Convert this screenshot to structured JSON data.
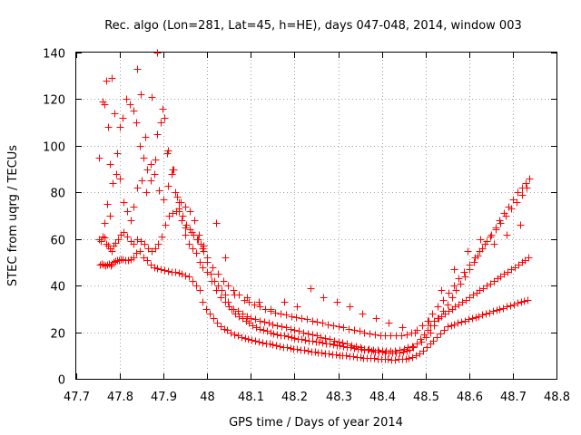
{
  "chart_data": {
    "type": "scatter",
    "title": "Rec. algo (Lon=281, Lat=45, h=HE), days 047-048, 2014, window 003",
    "xlabel": "GPS time / Days of year 2014",
    "ylabel": "STEC from uqrg / TECUs",
    "xlim": [
      47.7,
      48.8
    ],
    "ylim": [
      0,
      140
    ],
    "xticks": [
      "47.7",
      "47.8",
      "47.9",
      "48",
      "48.1",
      "48.2",
      "48.3",
      "48.4",
      "48.5",
      "48.6",
      "48.7",
      "48.8"
    ],
    "yticks": [
      "0",
      "20",
      "40",
      "60",
      "80",
      "100",
      "120",
      "140"
    ],
    "grid": true,
    "marker": "+",
    "color": "#ff0000",
    "series": [
      {
        "x": [
          47.754,
          47.758,
          47.762,
          47.766,
          47.77,
          47.774,
          47.778,
          47.782,
          47.786,
          47.79,
          47.794,
          47.798,
          47.802,
          47.806,
          47.812,
          47.818,
          47.824,
          47.83,
          47.838,
          47.846,
          47.854,
          47.862,
          47.87,
          47.878,
          47.886,
          47.894,
          47.902,
          47.91,
          47.918,
          47.926,
          47.934,
          47.942,
          47.95,
          47.958,
          47.966,
          47.974,
          47.982,
          47.99,
          47.998,
          48.006,
          48.014,
          48.022,
          48.03,
          48.038,
          48.046,
          48.054,
          48.062,
          48.07,
          48.078,
          48.086,
          48.094,
          48.102,
          48.11,
          48.118,
          48.126,
          48.134,
          48.142,
          48.15,
          48.158,
          48.166,
          48.174,
          48.182,
          48.19,
          48.198,
          48.206,
          48.214,
          48.222,
          48.23,
          48.238,
          48.246,
          48.254,
          48.262,
          48.27,
          48.278,
          48.286,
          48.294,
          48.302,
          48.31,
          48.318,
          48.326,
          48.334,
          48.342,
          48.35,
          48.358,
          48.366,
          48.374,
          48.382,
          48.39,
          48.398,
          48.406,
          48.414,
          48.422,
          48.43,
          48.438,
          48.446,
          48.454,
          48.462,
          48.47,
          48.478,
          48.486,
          48.494,
          48.502,
          48.51,
          48.518,
          48.526,
          48.534,
          48.542,
          48.55,
          48.558,
          48.566,
          48.574,
          48.582,
          48.59,
          48.598,
          48.606,
          48.614,
          48.622,
          48.63,
          48.638,
          48.646,
          48.654,
          48.662,
          48.67,
          48.678,
          48.686,
          48.694,
          48.702,
          48.71,
          48.718,
          48.726,
          48.734
        ],
        "y": [
          49,
          49.2,
          49,
          48.8,
          49,
          49.3,
          48.7,
          49.5,
          50,
          50.5,
          51,
          51,
          51.5,
          51.2,
          51,
          51,
          51.5,
          52,
          54,
          55,
          52,
          51,
          49,
          48,
          47.5,
          47,
          46.5,
          46.3,
          46,
          46,
          45.5,
          45,
          44.5,
          44,
          42,
          40,
          38,
          33,
          30,
          28,
          26,
          24,
          22.5,
          21.5,
          21,
          20,
          19,
          18.5,
          18,
          17.5,
          17,
          16.7,
          16.3,
          16,
          15.5,
          15.3,
          15,
          14.7,
          14.3,
          14,
          13.7,
          13.5,
          13.3,
          13,
          12.8,
          12.6,
          12.3,
          12,
          11.8,
          11.6,
          11.4,
          11.2,
          11,
          10.8,
          10.6,
          10.4,
          10.3,
          10.1,
          10,
          9.8,
          9.6,
          9.4,
          9.2,
          9.1,
          9,
          8.9,
          8.8,
          8.7,
          8.6,
          8.5,
          8.4,
          8.3,
          8.3,
          8.4,
          8.5,
          8.7,
          9,
          9.5,
          10,
          11,
          12,
          13.5,
          15,
          16.5,
          18,
          19.5,
          21,
          22.5,
          23,
          23.5,
          24,
          24.5,
          25,
          25.5,
          26,
          26.5,
          27,
          27.5,
          28,
          28.5,
          29,
          29.5,
          30,
          30.5,
          31,
          31.5,
          32,
          32.5,
          33,
          33.5,
          34
        ],
        "name": ""
      },
      {
        "x": [
          47.752,
          47.757,
          47.761,
          47.765,
          47.769,
          47.773,
          47.777,
          47.781,
          47.785,
          47.79,
          47.796,
          47.802,
          47.808,
          47.816,
          47.824,
          47.832,
          47.84,
          47.848,
          47.856,
          47.864,
          47.872,
          47.88,
          47.888,
          47.896,
          47.904,
          47.912,
          47.92,
          47.928,
          47.936,
          47.944,
          47.952,
          47.96,
          47.968,
          47.976,
          47.984,
          47.992,
          48.0,
          48.008,
          48.016,
          48.024,
          48.032,
          48.04,
          48.048,
          48.056,
          48.064,
          48.072,
          48.08,
          48.088,
          48.096,
          48.104,
          48.112,
          48.12,
          48.128,
          48.136,
          48.144,
          48.152,
          48.16,
          48.168,
          48.176,
          48.184,
          48.192,
          48.2,
          48.208,
          48.216,
          48.224,
          48.232,
          48.24,
          48.248,
          48.256,
          48.264,
          48.272,
          48.28,
          48.288,
          48.296,
          48.304,
          48.312,
          48.32,
          48.328,
          48.336,
          48.344,
          48.352,
          48.36,
          48.368,
          48.376,
          48.384,
          48.392,
          48.4,
          48.408,
          48.416,
          48.424,
          48.432,
          48.44,
          48.448,
          48.456,
          48.464,
          48.472,
          48.48,
          48.488,
          48.496,
          48.504,
          48.512,
          48.52,
          48.528,
          48.536,
          48.544,
          48.552,
          48.56,
          48.568,
          48.576,
          48.584,
          48.592,
          48.6,
          48.608,
          48.616,
          48.624,
          48.632,
          48.64,
          48.648,
          48.656,
          48.664,
          48.672,
          48.68,
          48.688,
          48.696,
          48.704,
          48.712,
          48.72,
          48.728,
          48.736
        ],
        "y": [
          60,
          59,
          61,
          60.5,
          58,
          57,
          56,
          55,
          57,
          58.5,
          60,
          62,
          63,
          61,
          59,
          58,
          60,
          59,
          58,
          56,
          55,
          56,
          58,
          61,
          66,
          70,
          71,
          72,
          73,
          70,
          66,
          64,
          62,
          60,
          58,
          55,
          50,
          45,
          42,
          40,
          38,
          36,
          33,
          30,
          28,
          27,
          26,
          25,
          24,
          23,
          22,
          21.5,
          21,
          20.5,
          20,
          19.5,
          19,
          18.8,
          18.5,
          18.2,
          18,
          17.5,
          17.2,
          17,
          16.8,
          16.5,
          16.2,
          16,
          15.8,
          15.5,
          15.2,
          15,
          14.8,
          14.5,
          14.2,
          14,
          13.8,
          13.5,
          13.2,
          13,
          12.8,
          12.5,
          12.3,
          12,
          11.8,
          11.6,
          11.5,
          11.4,
          11.3,
          11.2,
          11.2,
          11.3,
          11.5,
          12,
          12.5,
          13.5,
          15,
          17,
          19,
          21,
          23,
          25,
          26,
          27,
          28,
          29,
          30,
          31,
          32,
          33,
          34,
          35,
          36,
          37,
          38,
          39,
          40,
          41,
          42,
          43,
          44,
          45,
          46,
          47,
          48,
          49,
          50,
          51,
          52
        ],
        "name": ""
      },
      {
        "x": [
          47.753,
          47.76,
          47.764,
          47.768,
          47.772,
          47.776,
          47.782,
          47.788,
          47.794,
          47.8,
          47.806,
          47.814,
          47.822,
          47.83,
          47.838,
          47.846,
          47.854,
          47.862,
          47.87,
          47.878,
          47.886,
          47.894,
          47.902,
          47.91,
          47.918,
          47.926,
          47.934,
          47.942,
          47.95,
          47.958,
          47.966,
          47.974,
          47.982,
          47.99,
          48.0,
          48.01,
          48.02,
          48.03,
          48.04,
          48.05,
          48.06,
          48.07,
          48.08,
          48.09,
          48.1,
          48.11,
          48.12,
          48.13,
          48.14,
          48.15,
          48.16,
          48.17,
          48.18,
          48.19,
          48.2,
          48.21,
          48.22,
          48.23,
          48.24,
          48.25,
          48.26,
          48.27,
          48.28,
          48.29,
          48.3,
          48.31,
          48.32,
          48.33,
          48.34,
          48.35,
          48.36,
          48.37,
          48.38,
          48.39,
          48.4,
          48.41,
          48.42,
          48.43,
          48.44,
          48.45,
          48.46,
          48.47,
          48.48,
          48.49,
          48.5,
          48.51,
          48.52,
          48.53,
          48.54,
          48.55,
          48.56,
          48.57,
          48.58,
          48.59,
          48.6,
          48.61,
          48.62,
          48.63,
          48.64,
          48.65,
          48.66,
          48.67,
          48.68,
          48.69,
          48.7,
          48.71,
          48.72,
          48.73,
          48.738
        ],
        "y": [
          95,
          119,
          118,
          128,
          108,
          92,
          129,
          114,
          97,
          108,
          112,
          120,
          118,
          115,
          110,
          100,
          95,
          90,
          85,
          88,
          105,
          110,
          112,
          98,
          88,
          80,
          72,
          68,
          62,
          58,
          56,
          54,
          50,
          48,
          46,
          42,
          38,
          35,
          33,
          31,
          30,
          29,
          28,
          27,
          26,
          25.5,
          25,
          24.5,
          24,
          23.5,
          23,
          22.5,
          22,
          21.5,
          21,
          20.5,
          20,
          19.5,
          19,
          18.5,
          18,
          17.5,
          17,
          16.5,
          16,
          15.5,
          15,
          14.5,
          14,
          13.5,
          13,
          12.8,
          12.6,
          12.4,
          12.2,
          12,
          12,
          12.2,
          12.5,
          13,
          13.5,
          14,
          15,
          16,
          18,
          20,
          23,
          26,
          29,
          32,
          35,
          38,
          41,
          44,
          47,
          50,
          53,
          56,
          59,
          62,
          65,
          68,
          71,
          74,
          77,
          80,
          82,
          84,
          86
        ],
        "name": ""
      },
      {
        "x": [
          47.764,
          47.77,
          47.776,
          47.784,
          47.792,
          47.8,
          47.808,
          47.816,
          47.824,
          47.832,
          47.84,
          47.85,
          47.86,
          47.87,
          47.88,
          47.89,
          47.9,
          47.91,
          47.92,
          47.93,
          47.94,
          47.95,
          47.96,
          47.97,
          47.98,
          47.99,
          48.0,
          48.012,
          48.024,
          48.036,
          48.048,
          48.06,
          48.072,
          48.084,
          48.096,
          48.108,
          48.12,
          48.132,
          48.144,
          48.156,
          48.168,
          48.18,
          48.192,
          48.204,
          48.216,
          48.228,
          48.24,
          48.252,
          48.264,
          48.276,
          48.288,
          48.3,
          48.312,
          48.324,
          48.336,
          48.348,
          48.36,
          48.372,
          48.384,
          48.396,
          48.408,
          48.42,
          48.432,
          48.444,
          48.456,
          48.468,
          48.48,
          48.492,
          48.504,
          48.516,
          48.528,
          48.54,
          48.552,
          48.564,
          48.576,
          48.588,
          48.6,
          48.612,
          48.624,
          48.636,
          48.648,
          48.66,
          48.672,
          48.684,
          48.696,
          48.708,
          48.72,
          48.732
        ],
        "y": [
          67,
          75,
          70,
          84,
          88,
          86,
          76,
          72,
          68,
          74,
          82,
          85,
          80,
          92,
          94,
          81,
          77,
          83,
          90,
          78,
          76,
          74,
          72,
          68,
          62,
          56,
          52,
          48,
          45,
          42,
          40,
          38,
          36,
          34,
          33,
          32,
          31,
          30,
          29,
          28.5,
          28,
          27.5,
          27,
          26.5,
          26,
          25.5,
          25,
          24.5,
          24,
          23.5,
          23,
          22.5,
          22,
          21.5,
          21,
          20.5,
          20,
          19.5,
          19,
          18.8,
          18.6,
          18.5,
          18.6,
          18.8,
          19.2,
          20,
          21,
          23,
          25,
          28,
          31,
          34,
          37,
          40,
          43,
          46,
          49,
          52,
          55,
          58,
          61,
          64,
          67,
          70,
          73,
          76,
          79,
          82
        ],
        "name": ""
      },
      {
        "x": [
          47.84,
          47.848,
          47.858,
          47.872,
          47.885,
          47.898,
          47.908,
          47.922,
          47.936,
          47.95,
          47.964,
          47.978,
          47.992,
          48.02,
          48.04,
          48.062,
          48.09,
          48.118,
          48.146,
          48.176,
          48.206,
          48.236,
          48.266,
          48.296,
          48.326,
          48.356,
          48.386,
          48.416,
          48.446,
          48.476,
          48.506,
          48.536,
          48.566,
          48.596,
          48.626,
          48.656,
          48.686,
          48.716
        ],
        "y": [
          133,
          122,
          104,
          121,
          140,
          116,
          97,
          90,
          76,
          65,
          63,
          60,
          57,
          67,
          52,
          36,
          35,
          33,
          30,
          33,
          31,
          39,
          35,
          33,
          31,
          28,
          26,
          24,
          22,
          20,
          25,
          38,
          47,
          55,
          60,
          58,
          62,
          66
        ],
        "name": ""
      }
    ]
  }
}
